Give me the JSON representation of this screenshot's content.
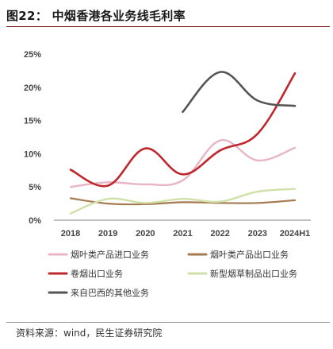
{
  "title": "图22：  中烟香港各业务线毛利率",
  "source": "资料来源：wind，民生证券研究院",
  "chart_data": {
    "type": "line",
    "title": "中烟香港各业务线毛利率",
    "categories": [
      "2018",
      "2019",
      "2020",
      "2021",
      "2022",
      "2023",
      "2024H1"
    ],
    "y_ticks": [
      "0%",
      "5%",
      "10%",
      "15%",
      "20%",
      "25%"
    ],
    "ylim": [
      0,
      25
    ],
    "grid": false,
    "legend_position": "bottom",
    "series": [
      {
        "name": "烟叶类产品进口业务",
        "color": "#e8b4c6",
        "values": [
          5.0,
          5.7,
          5.4,
          6.0,
          12.0,
          9.0,
          10.9
        ]
      },
      {
        "name": "烟叶类产品出口业务",
        "color": "#a67a52",
        "values": [
          3.3,
          2.5,
          2.4,
          2.7,
          2.6,
          2.6,
          3.0
        ]
      },
      {
        "name": "卷烟出口业务",
        "color": "#c0272d",
        "values": [
          7.6,
          5.2,
          10.8,
          6.9,
          10.5,
          13.0,
          22.1
        ]
      },
      {
        "name": "新型烟草制品出口业务",
        "color": "#cfe0a8",
        "values": [
          1.0,
          3.2,
          2.6,
          3.2,
          2.8,
          4.3,
          4.7
        ]
      },
      {
        "name": "来自巴西的其他业务",
        "color": "#555555",
        "values": [
          null,
          null,
          null,
          16.3,
          22.3,
          18.0,
          17.2
        ]
      }
    ]
  }
}
